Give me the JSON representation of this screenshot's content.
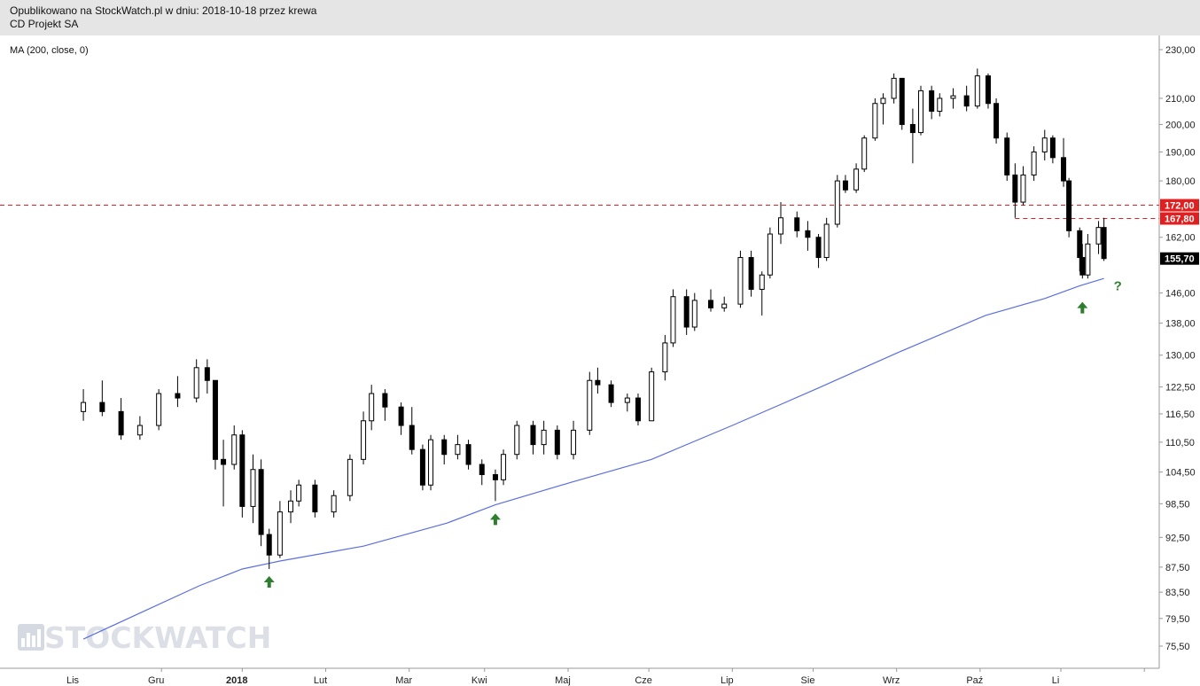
{
  "header": {
    "line1": "Opublikowano na StockWatch.pl w dniu: 2018-10-18 przez krewa",
    "line2": "CD Projekt SA"
  },
  "indicator_label": "MA (200, close, 0)",
  "watermark": "STOCKWATCH",
  "colors": {
    "candle_up": "#ffffff",
    "candle_down": "#000000",
    "ma_line": "#5b6fe0",
    "level_line": "#e02020",
    "arrow": "#2f7d2f",
    "price_tag_bg": "#000000",
    "level_tag_bg": "#e02020"
  },
  "chart_data": {
    "type": "candlestick",
    "title": "CD Projekt SA",
    "y_scale": "log",
    "ylim": [
      72.5,
      236
    ],
    "y_ticks": [
      "75,50",
      "79,50",
      "83,50",
      "87,50",
      "92,50",
      "98,50",
      "104,50",
      "110,50",
      "116,50",
      "122,50",
      "130,00",
      "138,00",
      "146,00",
      "155,70",
      "162,00",
      "167,80",
      "172,00",
      "180,00",
      "190,00",
      "200,00",
      "210,00",
      "230,00"
    ],
    "y_tick_values": [
      75.5,
      79.5,
      83.5,
      87.5,
      92.5,
      98.5,
      104.5,
      110.5,
      116.5,
      122.5,
      130,
      138,
      146,
      155.7,
      162,
      167.8,
      172,
      180,
      190,
      200,
      210,
      230
    ],
    "x_months": [
      "Lis",
      "Gru",
      "2018",
      "Lut",
      "Mar",
      "Kwi",
      "Maj",
      "Cze",
      "Lip",
      "Sie",
      "Wrz",
      "Paź",
      "Li"
    ],
    "last_price": "155,70",
    "levels": [
      {
        "label": "172,00",
        "value": 172.0,
        "style": "dashed"
      },
      {
        "label": "167,80",
        "value": 167.8,
        "style": "dashed"
      }
    ],
    "ma_series": {
      "name": "MA (200, close, 0)",
      "points": [
        [
          "2017-10-03",
          76.5
        ],
        [
          "2017-10-25",
          80.5
        ],
        [
          "2017-11-15",
          84.5
        ],
        [
          "2017-12-01",
          87.2
        ],
        [
          "2017-12-15",
          88.5
        ],
        [
          "2018-01-15",
          91.0
        ],
        [
          "2018-02-15",
          95.0
        ],
        [
          "2018-03-05",
          98.3
        ],
        [
          "2018-04-02",
          102.5
        ],
        [
          "2018-05-02",
          107.0
        ],
        [
          "2018-06-01",
          114.0
        ],
        [
          "2018-07-02",
          122.0
        ],
        [
          "2018-08-01",
          130.5
        ],
        [
          "2018-09-03",
          140.0
        ],
        [
          "2018-09-25",
          144.5
        ],
        [
          "2018-10-08",
          148.0
        ],
        [
          "2018-10-17",
          150.0
        ]
      ]
    },
    "annotations": [
      {
        "type": "up-arrow",
        "date": "2017-12-11",
        "value": 87.2
      },
      {
        "type": "up-arrow",
        "date": "2018-03-05",
        "value": 98.0
      },
      {
        "type": "up-arrow",
        "date": "2018-10-09",
        "value": 145.5
      },
      {
        "type": "text",
        "text": "?",
        "date": "2018-10-18",
        "value": 147.5
      }
    ],
    "candles": [
      {
        "d": "2017-10-03",
        "o": 117,
        "h": 122,
        "l": 115,
        "c": 119
      },
      {
        "d": "2017-10-10",
        "o": 119,
        "h": 124,
        "l": 116,
        "c": 117
      },
      {
        "d": "2017-10-17",
        "o": 117,
        "h": 120,
        "l": 111,
        "c": 112
      },
      {
        "d": "2017-10-24",
        "o": 112,
        "h": 116,
        "l": 111,
        "c": 114
      },
      {
        "d": "2017-10-31",
        "o": 114,
        "h": 122,
        "l": 113,
        "c": 121
      },
      {
        "d": "2017-11-07",
        "o": 121,
        "h": 125,
        "l": 118,
        "c": 120
      },
      {
        "d": "2017-11-14",
        "o": 120,
        "h": 129,
        "l": 119,
        "c": 127
      },
      {
        "d": "2017-11-18",
        "o": 127,
        "h": 129,
        "l": 121,
        "c": 124
      },
      {
        "d": "2017-11-21",
        "o": 124,
        "h": 124,
        "l": 105,
        "c": 107
      },
      {
        "d": "2017-11-24",
        "o": 107,
        "h": 111,
        "l": 98,
        "c": 106
      },
      {
        "d": "2017-11-28",
        "o": 106,
        "h": 114,
        "l": 105,
        "c": 112
      },
      {
        "d": "2017-12-01",
        "o": 112,
        "h": 113,
        "l": 96,
        "c": 98
      },
      {
        "d": "2017-12-05",
        "o": 98,
        "h": 108,
        "l": 95,
        "c": 105
      },
      {
        "d": "2017-12-08",
        "o": 105,
        "h": 107,
        "l": 91,
        "c": 93
      },
      {
        "d": "2017-12-11",
        "o": 93,
        "h": 94,
        "l": 87.2,
        "c": 89.5
      },
      {
        "d": "2017-12-15",
        "o": 89.5,
        "h": 99,
        "l": 89,
        "c": 97
      },
      {
        "d": "2017-12-19",
        "o": 97,
        "h": 101,
        "l": 95,
        "c": 99
      },
      {
        "d": "2017-12-22",
        "o": 99,
        "h": 103,
        "l": 98,
        "c": 102
      },
      {
        "d": "2017-12-28",
        "o": 102,
        "h": 103,
        "l": 96,
        "c": 97
      },
      {
        "d": "2018-01-04",
        "o": 97,
        "h": 101,
        "l": 96,
        "c": 100
      },
      {
        "d": "2018-01-10",
        "o": 100,
        "h": 108,
        "l": 99,
        "c": 107
      },
      {
        "d": "2018-01-15",
        "o": 107,
        "h": 117,
        "l": 106,
        "c": 115
      },
      {
        "d": "2018-01-18",
        "o": 115,
        "h": 123,
        "l": 113,
        "c": 121
      },
      {
        "d": "2018-01-23",
        "o": 121,
        "h": 122,
        "l": 115,
        "c": 118
      },
      {
        "d": "2018-01-29",
        "o": 118,
        "h": 119,
        "l": 112,
        "c": 114
      },
      {
        "d": "2018-02-02",
        "o": 114,
        "h": 118,
        "l": 108,
        "c": 109
      },
      {
        "d": "2018-02-06",
        "o": 109,
        "h": 110,
        "l": 101,
        "c": 102
      },
      {
        "d": "2018-02-09",
        "o": 102,
        "h": 112,
        "l": 101,
        "c": 111
      },
      {
        "d": "2018-02-14",
        "o": 111,
        "h": 112,
        "l": 106,
        "c": 108
      },
      {
        "d": "2018-02-19",
        "o": 108,
        "h": 112,
        "l": 107,
        "c": 110
      },
      {
        "d": "2018-02-23",
        "o": 110,
        "h": 111,
        "l": 105,
        "c": 106
      },
      {
        "d": "2018-02-28",
        "o": 106,
        "h": 107,
        "l": 102,
        "c": 104
      },
      {
        "d": "2018-03-05",
        "o": 104,
        "h": 105,
        "l": 99,
        "c": 103
      },
      {
        "d": "2018-03-08",
        "o": 103,
        "h": 109,
        "l": 102,
        "c": 108
      },
      {
        "d": "2018-03-13",
        "o": 108,
        "h": 115,
        "l": 107,
        "c": 114
      },
      {
        "d": "2018-03-19",
        "o": 114,
        "h": 115,
        "l": 108,
        "c": 110
      },
      {
        "d": "2018-03-23",
        "o": 110,
        "h": 115,
        "l": 108,
        "c": 113
      },
      {
        "d": "2018-03-28",
        "o": 113,
        "h": 114,
        "l": 107,
        "c": 108
      },
      {
        "d": "2018-04-03",
        "o": 108,
        "h": 115,
        "l": 107,
        "c": 113
      },
      {
        "d": "2018-04-09",
        "o": 113,
        "h": 126,
        "l": 112,
        "c": 124
      },
      {
        "d": "2018-04-12",
        "o": 124,
        "h": 127,
        "l": 121,
        "c": 123
      },
      {
        "d": "2018-04-17",
        "o": 123,
        "h": 124,
        "l": 118,
        "c": 119
      },
      {
        "d": "2018-04-23",
        "o": 119,
        "h": 121,
        "l": 117,
        "c": 120
      },
      {
        "d": "2018-04-27",
        "o": 120,
        "h": 121,
        "l": 114,
        "c": 115
      },
      {
        "d": "2018-05-02",
        "o": 115,
        "h": 127,
        "l": 115,
        "c": 126
      },
      {
        "d": "2018-05-07",
        "o": 126,
        "h": 135,
        "l": 124,
        "c": 133
      },
      {
        "d": "2018-05-10",
        "o": 133,
        "h": 147,
        "l": 132,
        "c": 145
      },
      {
        "d": "2018-05-15",
        "o": 145,
        "h": 147,
        "l": 135,
        "c": 137
      },
      {
        "d": "2018-05-18",
        "o": 137,
        "h": 146,
        "l": 136,
        "c": 144
      },
      {
        "d": "2018-05-24",
        "o": 144,
        "h": 147,
        "l": 141,
        "c": 142
      },
      {
        "d": "2018-05-29",
        "o": 142,
        "h": 145,
        "l": 141,
        "c": 143
      },
      {
        "d": "2018-06-04",
        "o": 143,
        "h": 158,
        "l": 142,
        "c": 156
      },
      {
        "d": "2018-06-08",
        "o": 156,
        "h": 158,
        "l": 145,
        "c": 147
      },
      {
        "d": "2018-06-12",
        "o": 147,
        "h": 152,
        "l": 140,
        "c": 151
      },
      {
        "d": "2018-06-15",
        "o": 151,
        "h": 165,
        "l": 150,
        "c": 163
      },
      {
        "d": "2018-06-19",
        "o": 163,
        "h": 173,
        "l": 160,
        "c": 168
      },
      {
        "d": "2018-06-25",
        "o": 168,
        "h": 170,
        "l": 162,
        "c": 164
      },
      {
        "d": "2018-06-29",
        "o": 164,
        "h": 167,
        "l": 158,
        "c": 162
      },
      {
        "d": "2018-07-03",
        "o": 162,
        "h": 163,
        "l": 153,
        "c": 156
      },
      {
        "d": "2018-07-06",
        "o": 156,
        "h": 168,
        "l": 155,
        "c": 166
      },
      {
        "d": "2018-07-10",
        "o": 166,
        "h": 182,
        "l": 165,
        "c": 180
      },
      {
        "d": "2018-07-13",
        "o": 180,
        "h": 182,
        "l": 176,
        "c": 177
      },
      {
        "d": "2018-07-17",
        "o": 177,
        "h": 186,
        "l": 176,
        "c": 184
      },
      {
        "d": "2018-07-20",
        "o": 184,
        "h": 196,
        "l": 183,
        "c": 195
      },
      {
        "d": "2018-07-24",
        "o": 195,
        "h": 210,
        "l": 194,
        "c": 208
      },
      {
        "d": "2018-07-27",
        "o": 208,
        "h": 212,
        "l": 200,
        "c": 210
      },
      {
        "d": "2018-07-31",
        "o": 210,
        "h": 220,
        "l": 208,
        "c": 218
      },
      {
        "d": "2018-08-03",
        "o": 218,
        "h": 218,
        "l": 198,
        "c": 200
      },
      {
        "d": "2018-08-07",
        "o": 200,
        "h": 206,
        "l": 186,
        "c": 197
      },
      {
        "d": "2018-08-10",
        "o": 197,
        "h": 215,
        "l": 196,
        "c": 213
      },
      {
        "d": "2018-08-14",
        "o": 213,
        "h": 215,
        "l": 202,
        "c": 205
      },
      {
        "d": "2018-08-17",
        "o": 205,
        "h": 212,
        "l": 203,
        "c": 210
      },
      {
        "d": "2018-08-22",
        "o": 210,
        "h": 214,
        "l": 206,
        "c": 211
      },
      {
        "d": "2018-08-27",
        "o": 211,
        "h": 215,
        "l": 205,
        "c": 207
      },
      {
        "d": "2018-08-31",
        "o": 207,
        "h": 222,
        "l": 206,
        "c": 219
      },
      {
        "d": "2018-09-04",
        "o": 219,
        "h": 220,
        "l": 206,
        "c": 208
      },
      {
        "d": "2018-09-07",
        "o": 208,
        "h": 210,
        "l": 193,
        "c": 195
      },
      {
        "d": "2018-09-11",
        "o": 195,
        "h": 197,
        "l": 180,
        "c": 182
      },
      {
        "d": "2018-09-14",
        "o": 182,
        "h": 186,
        "l": 168,
        "c": 173
      },
      {
        "d": "2018-09-17",
        "o": 173,
        "h": 185,
        "l": 172,
        "c": 182
      },
      {
        "d": "2018-09-21",
        "o": 182,
        "h": 192,
        "l": 180,
        "c": 190
      },
      {
        "d": "2018-09-25",
        "o": 190,
        "h": 198,
        "l": 187,
        "c": 195
      },
      {
        "d": "2018-09-28",
        "o": 195,
        "h": 196,
        "l": 186,
        "c": 188
      },
      {
        "d": "2018-10-02",
        "o": 188,
        "h": 195,
        "l": 178,
        "c": 180
      },
      {
        "d": "2018-10-04",
        "o": 180,
        "h": 181,
        "l": 162,
        "c": 164
      },
      {
        "d": "2018-10-08",
        "o": 164,
        "h": 165,
        "l": 152,
        "c": 156
      },
      {
        "d": "2018-10-09",
        "o": 156,
        "h": 160,
        "l": 150,
        "c": 151
      },
      {
        "d": "2018-10-11",
        "o": 151,
        "h": 163,
        "l": 150,
        "c": 160
      },
      {
        "d": "2018-10-15",
        "o": 160,
        "h": 167,
        "l": 157,
        "c": 165
      },
      {
        "d": "2018-10-17",
        "o": 165,
        "h": 168,
        "l": 155,
        "c": 155.7
      }
    ]
  }
}
